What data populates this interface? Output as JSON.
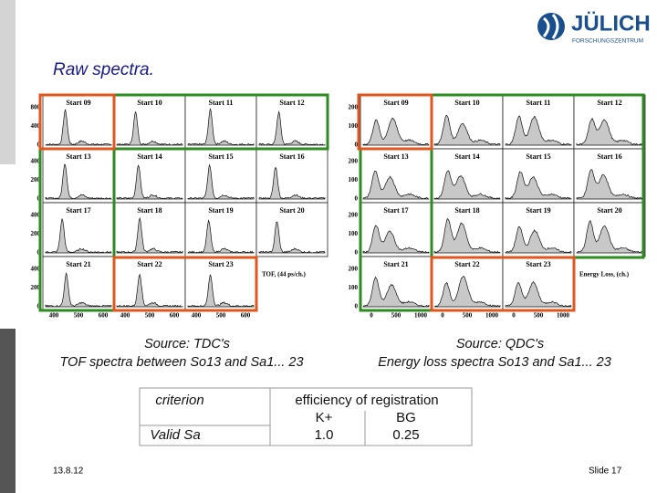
{
  "header": {
    "title": "Raw spectra.",
    "logo": "JÜLICH",
    "logo_sub": "FORSCHUNGSZENTRUM"
  },
  "left_figure": {
    "panels": [
      "Start 09",
      "Start 10",
      "Start 11",
      "Start 12",
      "Start 13",
      "Start 14",
      "Start 15",
      "Start 16",
      "Start 17",
      "Start 18",
      "Start 19",
      "Start 20",
      "Start 21",
      "Start 22",
      "Start 23"
    ],
    "y_labels": [
      [
        "800",
        "400",
        "0"
      ],
      [
        "400",
        "200",
        "0"
      ],
      [
        "400",
        "200",
        "0"
      ],
      [
        "400",
        "200",
        "0"
      ]
    ],
    "x_labels": [
      [
        "400",
        "500",
        "600"
      ],
      [
        "400",
        "500",
        "600"
      ],
      [
        "400",
        "500",
        "600"
      ]
    ],
    "axis_label": "TOF, (44 ps/ch.)",
    "caption": [
      "Source: TDC's",
      "TOF spectra between So13 and Sa1... 23"
    ]
  },
  "right_figure": {
    "panels": [
      "Start 09",
      "Start 10",
      "Start 11",
      "Start 12",
      "Start 13",
      "Start 14",
      "Start 15",
      "Start 16",
      "Start 17",
      "Start 18",
      "Start 19",
      "Start 20",
      "Start 21",
      "Start 22",
      "Start 23"
    ],
    "y_labels": [
      [
        "200",
        "100",
        "0"
      ],
      [
        "200",
        "100",
        "0"
      ],
      [
        "200",
        "100",
        "0"
      ],
      [
        "200",
        "100",
        "0"
      ]
    ],
    "x_labels": [
      [
        "0",
        "500",
        "1000"
      ],
      [
        "0",
        "500",
        "1000"
      ],
      [
        "0",
        "500",
        "1000"
      ]
    ],
    "axis_label": "Energy Loss, (ch.)",
    "caption": [
      "Source: QDC's",
      "Energy loss spectra So13 and Sa1... 23"
    ]
  },
  "table": {
    "criterion": "criterion",
    "criterion_value": "Valid Sa",
    "heading": "efficiency of registration",
    "columns": [
      "K+",
      "BG"
    ],
    "values": [
      "1.0",
      "0.25"
    ]
  },
  "footer": {
    "date": "13.8.12",
    "slide": "Slide 17"
  }
}
